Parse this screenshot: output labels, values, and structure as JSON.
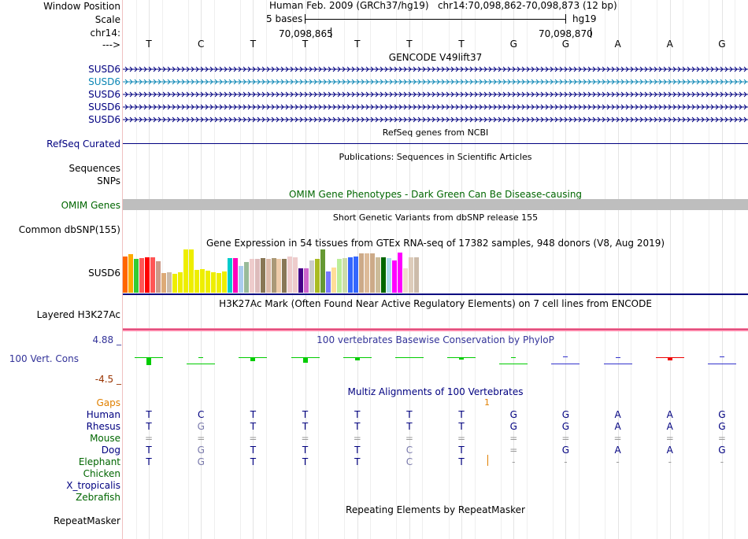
{
  "header": {
    "window_position_label": "Window Position",
    "scale_label": "Scale",
    "chrom_label": "chr14:",
    "strand_label": "--->",
    "position_title": "Human Feb. 2009 (GRCh37/hg19)   chr14:70,098,862-70,098,873 (12 bp)",
    "scale_text": "5 bases",
    "assembly": "hg19",
    "coord_left": "70,098,865",
    "coord_right": "70,098,870"
  },
  "sequence": [
    "T",
    "C",
    "T",
    "T",
    "T",
    "T",
    "T",
    "G",
    "G",
    "A",
    "A",
    "G"
  ],
  "gencode": {
    "title": "GENCODE V49lift37",
    "tracks": [
      {
        "label": "SUSD6",
        "color": "#000080"
      },
      {
        "label": "SUSD6",
        "color": "#0B86B4"
      },
      {
        "label": "SUSD6",
        "color": "#000080"
      },
      {
        "label": "SUSD6",
        "color": "#000080"
      },
      {
        "label": "SUSD6",
        "color": "#000080"
      }
    ]
  },
  "refseq": {
    "title": "RefSeq genes from NCBI",
    "label": "RefSeq Curated"
  },
  "publications": {
    "title": "Publications: Sequences in Scientific Articles",
    "label1": "Sequences",
    "label2": "SNPs"
  },
  "omim": {
    "title": "OMIM Gene Phenotypes - Dark Green Can Be Disease-causing",
    "label": "OMIM Genes"
  },
  "dbsnp": {
    "title": "Short Genetic Variants from dbSNP release 155",
    "label": "Common dbSNP(155)"
  },
  "gtex": {
    "title": "Gene Expression in 54 tissues from GTEx RNA-seq of 17382 samples, 948 donors (V8, Aug 2019)",
    "label": "SUSD6",
    "chart_data": {
      "type": "bar",
      "series": [
        {
          "name": "SUSD6 expression by tissue (relative)",
          "values": [
            0.83,
            0.87,
            0.76,
            0.79,
            0.81,
            0.81,
            0.72,
            0.44,
            0.46,
            0.43,
            0.46,
            0.98,
            0.98,
            0.52,
            0.54,
            0.5,
            0.46,
            0.44,
            0.48,
            0.78,
            0.78,
            0.61,
            0.69,
            0.76,
            0.76,
            0.78,
            0.76,
            0.78,
            0.76,
            0.76,
            0.83,
            0.8,
            0.56,
            0.56,
            0.74,
            0.76,
            0.98,
            0.48,
            0.58,
            0.76,
            0.78,
            0.8,
            0.83,
            0.89,
            0.89,
            0.89,
            0.81,
            0.81,
            0.78,
            0.74,
            0.91,
            0.56,
            0.81,
            0.81
          ]
        }
      ],
      "colors": [
        "#FF6600",
        "#FFAA00",
        "#33CC33",
        "#FF5555",
        "#FF0000",
        "#FF5555",
        "#CC9988",
        "#DDAA77",
        "#CCBBAA",
        "#EEEE00",
        "#EEEE00",
        "#EEEE00",
        "#EEEE00",
        "#EEEE00",
        "#EEEE00",
        "#EEEE00",
        "#EEEE00",
        "#EEEE00",
        "#EEEE00",
        "#00CCCC",
        "#FF00BB",
        "#AACCEE",
        "#99BB99",
        "#EECCCC",
        "#DDBBBB",
        "#887755",
        "#DDBBAA",
        "#AA9977",
        "#EECCAA",
        "#887755",
        "#EECCCC",
        "#EECCCC",
        "#440088",
        "#CC66CC",
        "#CCCCCC",
        "#AABB22",
        "#669933",
        "#7777FF",
        "#FFDD99",
        "#BBEE99",
        "#CCDDAA",
        "#3366FF",
        "#3366FF",
        "#CCAA88",
        "#DDBB99",
        "#CCAA88",
        "#CCBB99",
        "#006600",
        "#AADDEE",
        "#FF00FF",
        "#FF00FF",
        "#EEDDCC",
        "#DDCCBB",
        "#CCBBAA"
      ]
    }
  },
  "h3k27ac": {
    "title": "H3K27Ac Mark (Often Found Near Active Regulatory Elements) on 7 cell lines from ENCODE",
    "label": "Layered H3K27Ac"
  },
  "phylop": {
    "title": "100 vertebrates Basewise Conservation by PhyloP",
    "label": "100 Vert. Cons",
    "max_label": "4.88 _",
    "min_label": "-4.5 _",
    "chart_data": {
      "type": "bar",
      "ylim": [
        -4.5,
        4.88
      ],
      "values": [
        0.8,
        0.0,
        0.4,
        0.5,
        0.3,
        0.1,
        0.2,
        0.0,
        -0.1,
        0.0,
        0.3,
        -0.1
      ],
      "colors": [
        "#00CC00",
        "#00CC00",
        "#00CC00",
        "#00CC00",
        "#00CC00",
        "#00CC00",
        "#00CC00",
        "#00CC00",
        "#3333CC",
        "#3333CC",
        "#EE0000",
        "#3333CC"
      ]
    }
  },
  "multiz": {
    "title": "Multiz Alignments of 100 Vertebrates",
    "gaps_label": "Gaps",
    "gap_count": "1",
    "species": [
      {
        "label": "Human",
        "color": "#000080",
        "bases": [
          "T",
          "C",
          "T",
          "T",
          "T",
          "T",
          "T",
          "G",
          "G",
          "A",
          "A",
          "G"
        ]
      },
      {
        "label": "Rhesus",
        "color": "#000080",
        "bases": [
          "T",
          "G",
          "T",
          "T",
          "T",
          "T",
          "T",
          "G",
          "G",
          "A",
          "A",
          "G"
        ]
      },
      {
        "label": "Mouse",
        "color": "#006600",
        "bases": [
          "=",
          "=",
          "=",
          "=",
          "=",
          "=",
          "=",
          "=",
          "=",
          "=",
          "=",
          "="
        ]
      },
      {
        "label": "Dog",
        "color": "#000080",
        "bases": [
          "T",
          "G",
          "T",
          "T",
          "T",
          "C",
          "T",
          "=",
          "G",
          "A",
          "A",
          "G"
        ]
      },
      {
        "label": "Elephant",
        "color": "#006600",
        "bases": [
          "T",
          "G",
          "T",
          "T",
          "T",
          "C",
          "T",
          "-",
          "-",
          "-",
          "-",
          "-"
        ]
      },
      {
        "label": "Chicken",
        "color": "#006600",
        "bases": []
      },
      {
        "label": "X_tropicalis",
        "color": "#000080",
        "bases": []
      },
      {
        "label": "Zebrafish",
        "color": "#006600",
        "bases": []
      }
    ]
  },
  "repeatmasker": {
    "title": "Repeating Elements by RepeatMasker",
    "label": "RepeatMasker"
  }
}
